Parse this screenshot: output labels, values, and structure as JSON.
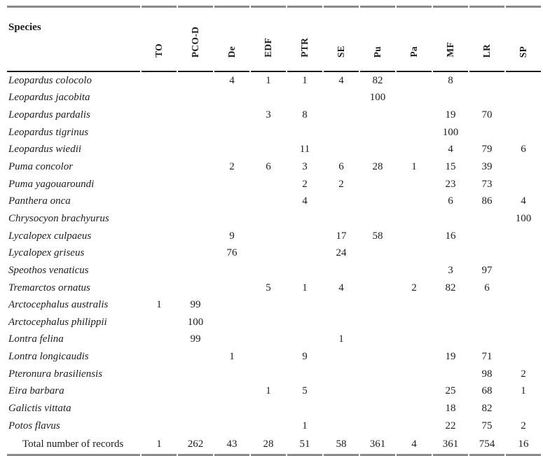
{
  "table": {
    "species_header": "Species",
    "columns": [
      "TO",
      "PCO-D",
      "De",
      "EDF",
      "PTR",
      "SE",
      "Pu",
      "Pa",
      "MF",
      "LR",
      "SP"
    ],
    "rows": [
      {
        "species": "Leopardus colocolo",
        "values": [
          "",
          "",
          "4",
          "1",
          "1",
          "4",
          "82",
          "",
          "8",
          "",
          ""
        ]
      },
      {
        "species": "Leopardus jacobita",
        "values": [
          "",
          "",
          "",
          "",
          "",
          "",
          "100",
          "",
          "",
          "",
          ""
        ]
      },
      {
        "species": "Leopardus pardalis",
        "values": [
          "",
          "",
          "",
          "3",
          "8",
          "",
          "",
          "",
          "19",
          "70",
          ""
        ]
      },
      {
        "species": "Leopardus tigrinus",
        "values": [
          "",
          "",
          "",
          "",
          "",
          "",
          "",
          "",
          "100",
          "",
          ""
        ]
      },
      {
        "species": "Leopardus wiedii",
        "values": [
          "",
          "",
          "",
          "",
          "11",
          "",
          "",
          "",
          "4",
          "79",
          "6"
        ]
      },
      {
        "species": "Puma concolor",
        "values": [
          "",
          "",
          "2",
          "6",
          "3",
          "6",
          "28",
          "1",
          "15",
          "39",
          ""
        ]
      },
      {
        "species": "Puma yagouaroundi",
        "values": [
          "",
          "",
          "",
          "",
          "2",
          "2",
          "",
          "",
          "23",
          "73",
          ""
        ]
      },
      {
        "species": "Panthera onca",
        "values": [
          "",
          "",
          "",
          "",
          "4",
          "",
          "",
          "",
          "6",
          "86",
          "4"
        ]
      },
      {
        "species": "Chrysocyon brachyurus",
        "values": [
          "",
          "",
          "",
          "",
          "",
          "",
          "",
          "",
          "",
          "",
          "100"
        ]
      },
      {
        "species": "Lycalopex culpaeus",
        "values": [
          "",
          "",
          "9",
          "",
          "",
          "17",
          "58",
          "",
          "16",
          "",
          ""
        ]
      },
      {
        "species": "Lycalopex griseus",
        "values": [
          "",
          "",
          "76",
          "",
          "",
          "24",
          "",
          "",
          "",
          "",
          ""
        ]
      },
      {
        "species": "Speothos venaticus",
        "values": [
          "",
          "",
          "",
          "",
          "",
          "",
          "",
          "",
          "3",
          "97",
          ""
        ]
      },
      {
        "species": "Tremarctos ornatus",
        "values": [
          "",
          "",
          "",
          "5",
          "1",
          "4",
          "",
          "2",
          "82",
          "6",
          ""
        ]
      },
      {
        "species": "Arctocephalus australis",
        "values": [
          "1",
          "99",
          "",
          "",
          "",
          "",
          "",
          "",
          "",
          "",
          ""
        ]
      },
      {
        "species": "Arctocephalus philippii",
        "values": [
          "",
          "100",
          "",
          "",
          "",
          "",
          "",
          "",
          "",
          "",
          ""
        ]
      },
      {
        "species": "Lontra felina",
        "values": [
          "",
          "99",
          "",
          "",
          "",
          "1",
          "",
          "",
          "",
          "",
          ""
        ]
      },
      {
        "species": "Lontra longicaudis",
        "values": [
          "",
          "",
          "1",
          "",
          "9",
          "",
          "",
          "",
          "19",
          "71",
          ""
        ]
      },
      {
        "species": "Pteronura brasiliensis",
        "values": [
          "",
          "",
          "",
          "",
          "",
          "",
          "",
          "",
          "",
          "98",
          "2"
        ]
      },
      {
        "species": "Eira barbara",
        "values": [
          "",
          "",
          "",
          "1",
          "5",
          "",
          "",
          "",
          "25",
          "68",
          "1"
        ]
      },
      {
        "species": "Galictis vittata",
        "values": [
          "",
          "",
          "",
          "",
          "",
          "",
          "",
          "",
          "18",
          "82",
          ""
        ]
      },
      {
        "species": "Potos flavus",
        "values": [
          "",
          "",
          "",
          "",
          "1",
          "",
          "",
          "",
          "22",
          "75",
          "2"
        ]
      }
    ],
    "total": {
      "label": "Total number of records",
      "values": [
        "1",
        "262",
        "43",
        "28",
        "51",
        "58",
        "361",
        "4",
        "361",
        "754",
        "16"
      ]
    }
  },
  "colors": {
    "rule_gray": "#8a8a8a",
    "rule_black": "#1c1c1c",
    "text": "#1d1d1d"
  }
}
